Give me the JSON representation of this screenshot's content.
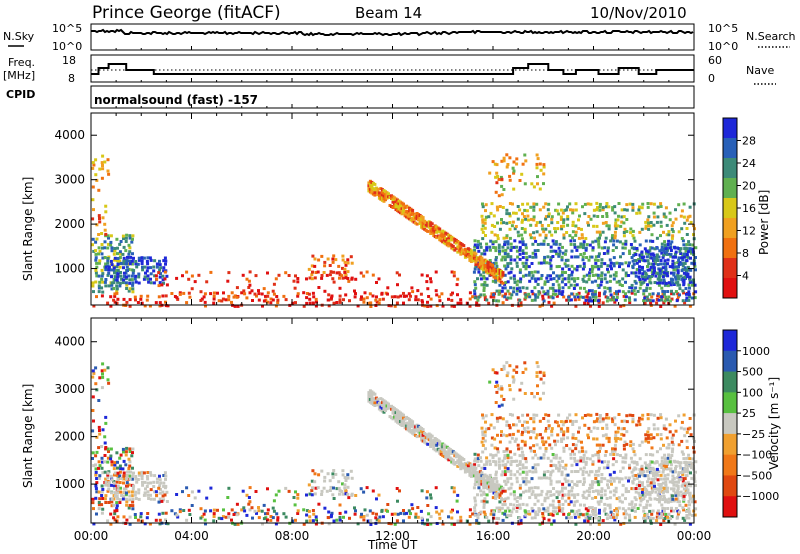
{
  "header": {
    "station": "Prince George (fitACF)",
    "beam": "Beam 14",
    "date": "10/Nov/2010"
  },
  "top_panel": {
    "left_label": "N.Sky",
    "right_label": "N.Search",
    "left_ticks": [
      "10^5",
      "10^0"
    ],
    "right_ticks": [
      "10^5",
      "10^0"
    ]
  },
  "freq_panel": {
    "left_label_1": "Freq.",
    "left_label_2": "[MHz]",
    "right_label": "Nave",
    "left_ticks": [
      "18",
      "8"
    ],
    "right_ticks": [
      "60",
      "0"
    ]
  },
  "cpid": {
    "label": "CPID",
    "text": "normalsound (fast) -157"
  },
  "colors": {
    "power": [
      "#1e28d8",
      "#2860b8",
      "#3c8a78",
      "#60b050",
      "#d8c818",
      "#f0a020",
      "#f07010",
      "#e03018",
      "#e01010"
    ],
    "velocity": [
      "#1e28d8",
      "#2a5ab0",
      "#3c8a60",
      "#58c040",
      "#c8c8c0",
      "#f0a030",
      "#f07818",
      "#e04810",
      "#e01010"
    ]
  },
  "chart_data": [
    {
      "type": "heatmap",
      "title": "",
      "xlabel": "Time UT",
      "ylabel": "Slant Range [km]",
      "x_ticks": [
        "00:00",
        "04:00",
        "08:00",
        "12:00",
        "16:00",
        "20:00",
        "00:00"
      ],
      "xlim_hours": [
        0,
        24
      ],
      "y_ticks": [
        1000,
        2000,
        3000,
        4000
      ],
      "ylim": [
        180,
        4500
      ],
      "colorbar": {
        "label": "Power [dB]",
        "ticks": [
          "28",
          "24",
          "20",
          "16",
          "12",
          "8",
          "4"
        ],
        "range": [
          0,
          30
        ]
      }
    },
    {
      "type": "heatmap",
      "title": "",
      "xlabel": "Time UT",
      "ylabel": "Slant Range [km]",
      "x_ticks": [
        "00:00",
        "04:00",
        "08:00",
        "12:00",
        "16:00",
        "20:00",
        "00:00"
      ],
      "xlim_hours": [
        0,
        24
      ],
      "y_ticks": [
        1000,
        2000,
        3000,
        4000
      ],
      "ylim": [
        180,
        4500
      ],
      "colorbar": {
        "label": "Velocity [m s⁻¹]",
        "ticks": [
          "1000",
          "500",
          "100",
          "25",
          "−25",
          "−100",
          "−500",
          "−1000"
        ]
      }
    }
  ],
  "footer": {
    "time_label": "Time UT"
  }
}
